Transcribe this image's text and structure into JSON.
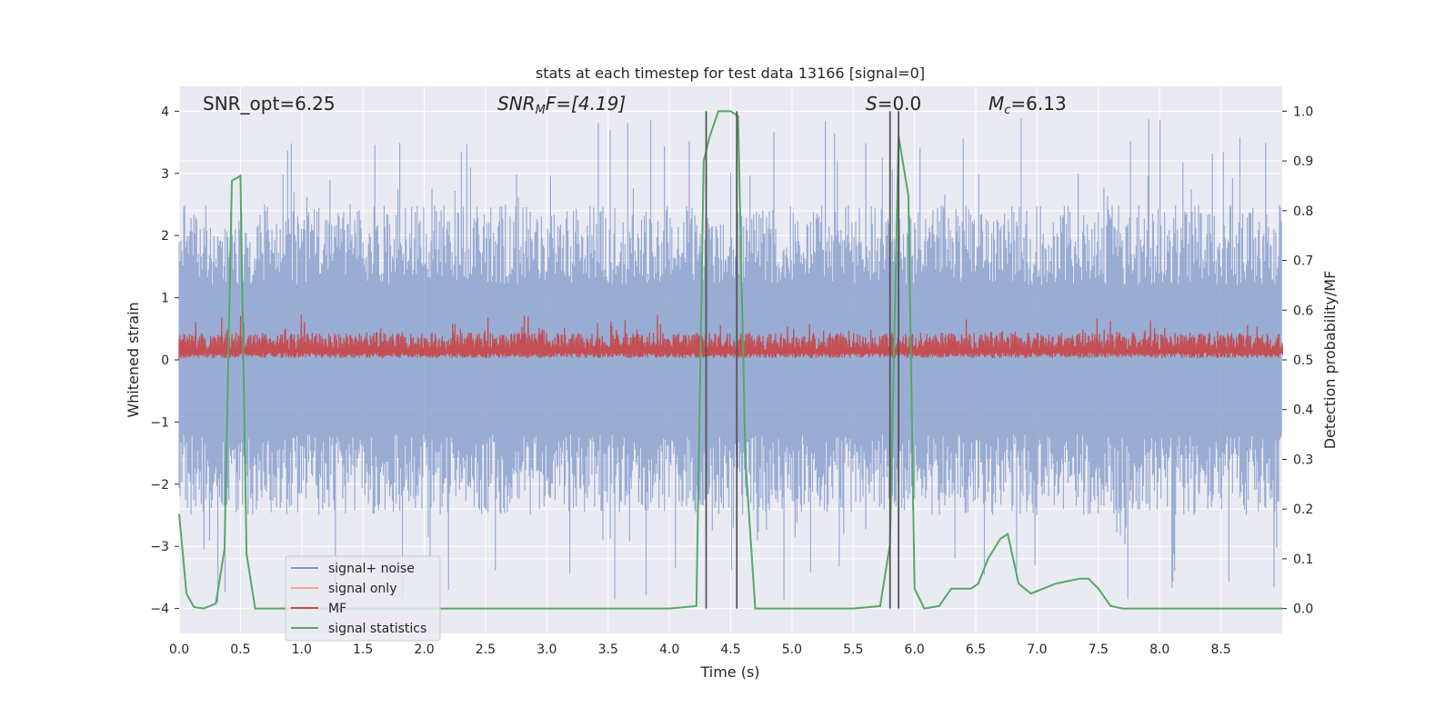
{
  "chart_data": {
    "type": "line",
    "title": "stats at each timestep for test data 13166 [signal=0]",
    "xlabel": "Time (s)",
    "ylabel_left": "Whitened strain",
    "ylabel_right": "Detection probability/MF",
    "xlim": [
      0,
      9.0
    ],
    "ylim_left": [
      -4.4,
      4.4
    ],
    "ylim_right": [
      -0.05,
      1.05
    ],
    "x_ticks": [
      "0.0",
      "0.5",
      "1.0",
      "1.5",
      "2.0",
      "2.5",
      "3.0",
      "3.5",
      "4.0",
      "4.5",
      "5.0",
      "5.5",
      "6.0",
      "6.5",
      "7.0",
      "7.5",
      "8.0",
      "8.5"
    ],
    "y_ticks_left": [
      "−4",
      "−3",
      "−2",
      "−1",
      "0",
      "1",
      "2",
      "3",
      "4"
    ],
    "y_ticks_right": [
      "0.0",
      "0.1",
      "0.2",
      "0.3",
      "0.4",
      "0.5",
      "0.6",
      "0.7",
      "0.8",
      "0.9",
      "1.0"
    ],
    "grid": true,
    "legend_position": "lower-left",
    "annotations": {
      "snr_opt": "SNR_opt=6.25",
      "snr_mf_var": "SNR",
      "snr_mf_sub": "M",
      "snr_mf_rest": "F=[4.19]",
      "s_var": "S",
      "s_rest": "=0.0",
      "mc_var": "M",
      "mc_sub": "c",
      "mc_rest": "=6.13"
    },
    "series": [
      {
        "name": "signal+ noise",
        "axis": "left",
        "color": "#7e97c8",
        "description_range": [
          -2.5,
          2.5
        ],
        "peak_values": [
          3.55,
          3.7,
          3.9,
          3.85,
          3.75,
          3.85,
          3.95,
          3.6
        ]
      },
      {
        "name": "signal only",
        "axis": "left",
        "color": "#e8a98a",
        "values": []
      },
      {
        "name": "MF",
        "axis": "right",
        "color": "#c44e52",
        "level": 0.5,
        "range": [
          0.5,
          0.6
        ]
      },
      {
        "name": "signal statistics",
        "axis": "right",
        "color": "#55a868",
        "x": [
          0.0,
          0.06,
          0.12,
          0.2,
          0.3,
          0.37,
          0.43,
          0.5,
          0.55,
          0.62,
          0.7,
          1.0,
          1.5,
          2.0,
          3.0,
          4.0,
          4.22,
          4.28,
          4.33,
          4.4,
          4.5,
          4.56,
          4.62,
          4.7,
          5.0,
          5.5,
          5.72,
          5.8,
          5.87,
          5.95,
          6.0,
          6.08,
          6.2,
          6.3,
          6.4,
          6.46,
          6.52,
          6.6,
          6.7,
          6.76,
          6.85,
          6.95,
          7.05,
          7.15,
          7.25,
          7.35,
          7.42,
          7.5,
          7.6,
          7.7,
          8.0,
          8.5,
          9.0
        ],
        "y": [
          0.19,
          0.03,
          0.003,
          0.0,
          0.01,
          0.12,
          0.86,
          0.87,
          0.11,
          0.0,
          0.0,
          0.0,
          0.0,
          0.0,
          0.0,
          0.0,
          0.005,
          0.9,
          0.95,
          1.0,
          1.0,
          0.99,
          0.3,
          0.0,
          0.0,
          0.0,
          0.005,
          0.13,
          0.95,
          0.83,
          0.04,
          0.0,
          0.005,
          0.04,
          0.04,
          0.04,
          0.05,
          0.1,
          0.14,
          0.15,
          0.05,
          0.03,
          0.04,
          0.05,
          0.055,
          0.06,
          0.06,
          0.04,
          0.005,
          0.0,
          0.0,
          0.0,
          0.0
        ]
      }
    ],
    "vertical_markers_seconds": [
      4.3,
      4.55,
      5.8,
      5.87
    ]
  },
  "colors": {
    "axes_bg": "#eaeaf2",
    "grid": "#ffffff",
    "marker_line": "#555555"
  }
}
